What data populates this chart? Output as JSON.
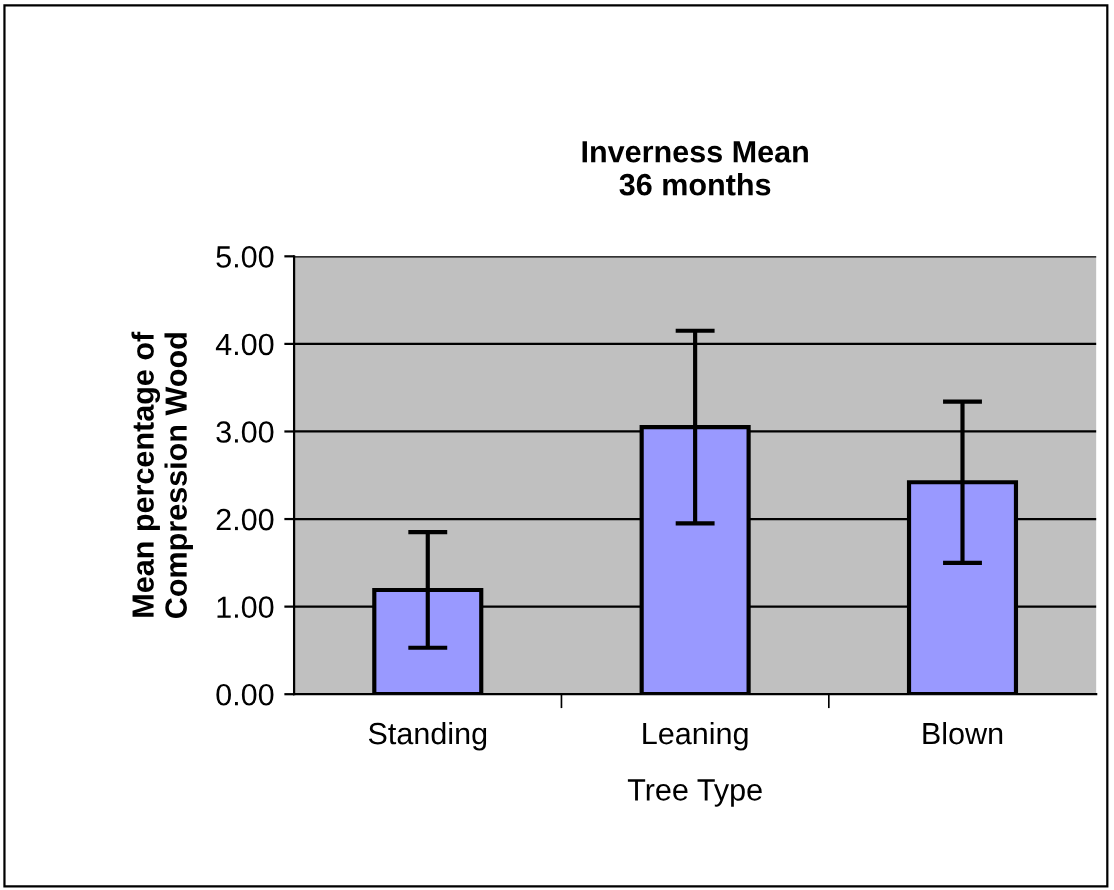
{
  "chart_data": {
    "type": "bar",
    "title": "Inverness Mean\n36 months",
    "xlabel": "Tree Type",
    "ylabel": "Mean percentage of\nCompression Wood",
    "categories": [
      "Standing",
      "Leaning",
      "Blown"
    ],
    "values": [
      1.19,
      3.05,
      2.42
    ],
    "errors": [
      0.66,
      1.1,
      0.92
    ],
    "color": "#9999ff",
    "ylim": [
      0,
      5
    ],
    "yticks": [
      {
        "value": 0,
        "label": "0.00"
      },
      {
        "value": 1,
        "label": "1.00"
      },
      {
        "value": 2,
        "label": "2.00"
      },
      {
        "value": 3,
        "label": "3.00"
      },
      {
        "value": 4,
        "label": "4.00"
      },
      {
        "value": 5,
        "label": "5.00"
      }
    ],
    "grid": "y"
  }
}
